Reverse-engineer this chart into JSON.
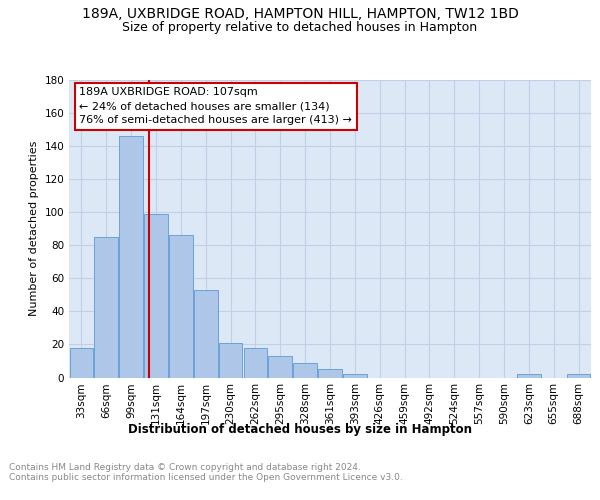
{
  "title": "189A, UXBRIDGE ROAD, HAMPTON HILL, HAMPTON, TW12 1BD",
  "subtitle": "Size of property relative to detached houses in Hampton",
  "xlabel": "Distribution of detached houses by size in Hampton",
  "ylabel": "Number of detached properties",
  "bar_categories": [
    "33sqm",
    "66sqm",
    "99sqm",
    "131sqm",
    "164sqm",
    "197sqm",
    "230sqm",
    "262sqm",
    "295sqm",
    "328sqm",
    "361sqm",
    "393sqm",
    "426sqm",
    "459sqm",
    "492sqm",
    "524sqm",
    "557sqm",
    "590sqm",
    "623sqm",
    "655sqm",
    "688sqm"
  ],
  "bar_values": [
    18,
    85,
    146,
    99,
    86,
    53,
    21,
    18,
    13,
    9,
    5,
    2,
    0,
    0,
    0,
    0,
    0,
    0,
    2,
    0,
    2
  ],
  "bar_color": "#aec6e8",
  "bar_edgecolor": "#5b9bd5",
  "vline_x": 2.72,
  "vline_color": "#cc0000",
  "annotation_box_text": "189A UXBRIDGE ROAD: 107sqm\n← 24% of detached houses are smaller (134)\n76% of semi-detached houses are larger (413) →",
  "annotation_box_color": "#cc0000",
  "annotation_box_facecolor": "white",
  "ylim": [
    0,
    180
  ],
  "yticks": [
    0,
    20,
    40,
    60,
    80,
    100,
    120,
    140,
    160,
    180
  ],
  "grid_color": "#c0d0e8",
  "title_fontsize": 10,
  "subtitle_fontsize": 9,
  "xlabel_fontsize": 8.5,
  "ylabel_fontsize": 8,
  "tick_fontsize": 7.5,
  "footer_text": "Contains HM Land Registry data © Crown copyright and database right 2024.\nContains public sector information licensed under the Open Government Licence v3.0.",
  "footer_color": "#888888",
  "background_color": "#dce8f5"
}
